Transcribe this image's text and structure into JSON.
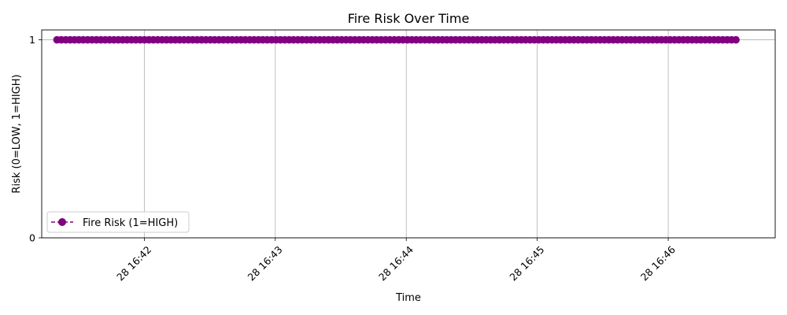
{
  "chart_data": {
    "type": "line",
    "title": "Fire Risk Over Time",
    "xlabel": "Time",
    "ylabel": "Risk (0=LOW, 1=HIGH)",
    "x_ticks": [
      {
        "time": "16:42",
        "label": "28 16:42"
      },
      {
        "time": "16:43",
        "label": "28 16:43"
      },
      {
        "time": "16:44",
        "label": "28 16:44"
      },
      {
        "time": "16:45",
        "label": "28 16:45"
      },
      {
        "time": "16:46",
        "label": "28 16:46"
      }
    ],
    "y_ticks": [
      {
        "value": 0,
        "label": "0"
      },
      {
        "value": 1,
        "label": "1"
      }
    ],
    "xlim": [
      "16:41:13",
      "16:46:49"
    ],
    "ylim": [
      0,
      1.05
    ],
    "grid": true,
    "legend_position": "lower-left",
    "series": [
      {
        "name": "Fire Risk (1=HIGH)",
        "color": "#800080",
        "marker": "circle",
        "linestyle": "dashed",
        "x_start": "16:41:20",
        "x_end": "16:46:31",
        "sample_interval_seconds": 2,
        "y": [
          1,
          1,
          1,
          1,
          1,
          1,
          1,
          1,
          1,
          1,
          1,
          1,
          1,
          1,
          1,
          1,
          1,
          1,
          1,
          1,
          1,
          1,
          1,
          1,
          1,
          1,
          1,
          1,
          1,
          1,
          1,
          1,
          1,
          1,
          1,
          1,
          1,
          1,
          1,
          1,
          1,
          1,
          1,
          1,
          1,
          1,
          1,
          1,
          1,
          1,
          1,
          1,
          1,
          1,
          1,
          1,
          1,
          1,
          1,
          1,
          1,
          1,
          1,
          1,
          1,
          1,
          1,
          1,
          1,
          1,
          1,
          1,
          1,
          1,
          1,
          1,
          1,
          1,
          1,
          1,
          1,
          1,
          1,
          1,
          1,
          1,
          1,
          1,
          1,
          1,
          1,
          1,
          1,
          1,
          1,
          1,
          1,
          1,
          1,
          1,
          1,
          1,
          1,
          1,
          1,
          1,
          1,
          1,
          1,
          1,
          1,
          1,
          1,
          1,
          1,
          1,
          1,
          1,
          1,
          1,
          1,
          1,
          1,
          1,
          1,
          1,
          1,
          1,
          1,
          1,
          1,
          1,
          1,
          1,
          1,
          1,
          1,
          1,
          1,
          1,
          1,
          1,
          1,
          1,
          1,
          1,
          1,
          1,
          1,
          1,
          1,
          1,
          1,
          1,
          1,
          1
        ]
      }
    ]
  }
}
